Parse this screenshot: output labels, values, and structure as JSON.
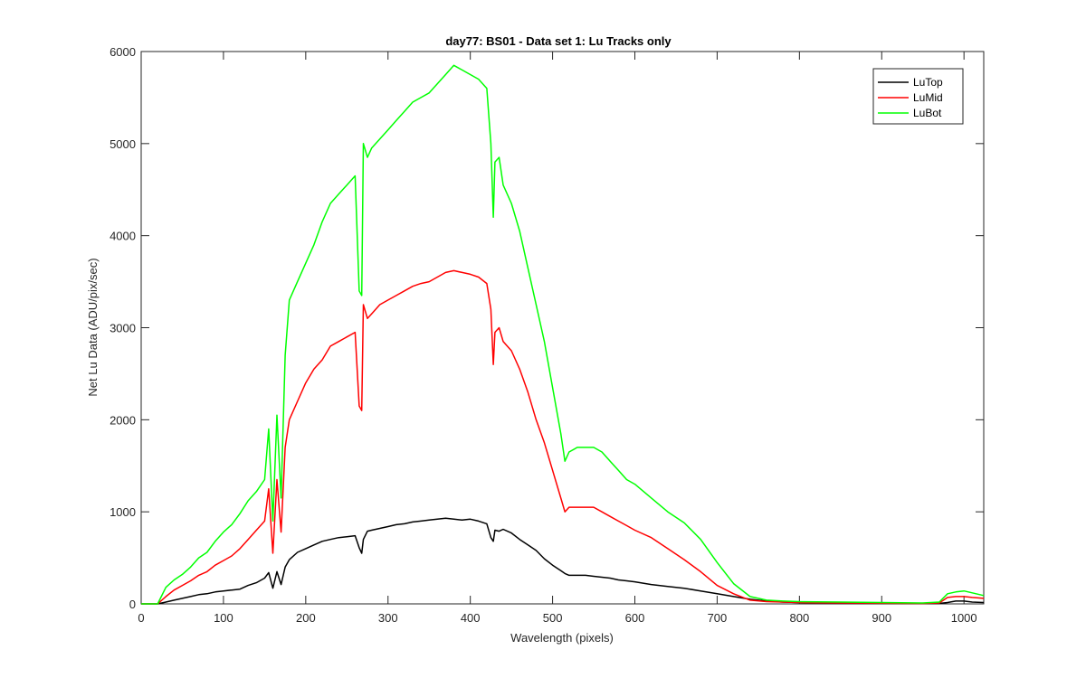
{
  "chart_data": {
    "type": "line",
    "title": "day77: BS01 - Data set 1: Lu Tracks only",
    "xlabel": "Wavelength (pixels)",
    "ylabel": "Net Lu Data (ADU/pix/sec)",
    "xlim": [
      0,
      1024
    ],
    "ylim": [
      0,
      6000
    ],
    "xticks": [
      0,
      100,
      200,
      300,
      400,
      500,
      600,
      700,
      800,
      900,
      1000
    ],
    "yticks": [
      0,
      1000,
      2000,
      3000,
      4000,
      5000,
      6000
    ],
    "grid": false,
    "legend_position": "top-right",
    "x": [
      0,
      20,
      30,
      40,
      50,
      60,
      70,
      80,
      90,
      100,
      110,
      120,
      130,
      140,
      150,
      155,
      160,
      165,
      170,
      175,
      180,
      190,
      200,
      210,
      220,
      230,
      240,
      250,
      260,
      265,
      268,
      270,
      275,
      280,
      290,
      300,
      310,
      320,
      330,
      340,
      350,
      360,
      370,
      380,
      390,
      400,
      410,
      420,
      425,
      428,
      430,
      435,
      440,
      450,
      460,
      470,
      480,
      490,
      500,
      510,
      515,
      520,
      530,
      540,
      550,
      560,
      570,
      580,
      590,
      600,
      620,
      640,
      660,
      680,
      700,
      720,
      740,
      760,
      780,
      800,
      850,
      900,
      950,
      970,
      980,
      990,
      1000,
      1010,
      1024
    ],
    "series": [
      {
        "name": "LuTop",
        "color": "#000000",
        "values": [
          0,
          0,
          20,
          40,
          60,
          80,
          100,
          110,
          130,
          140,
          150,
          160,
          200,
          230,
          280,
          340,
          170,
          350,
          210,
          400,
          480,
          560,
          600,
          640,
          680,
          700,
          720,
          730,
          740,
          610,
          550,
          700,
          790,
          800,
          820,
          840,
          860,
          870,
          890,
          900,
          910,
          920,
          930,
          920,
          910,
          920,
          900,
          870,
          720,
          680,
          800,
          790,
          810,
          770,
          700,
          640,
          580,
          490,
          420,
          360,
          330,
          310,
          310,
          310,
          300,
          290,
          280,
          260,
          250,
          240,
          210,
          190,
          170,
          140,
          110,
          80,
          50,
          30,
          20,
          15,
          10,
          8,
          5,
          5,
          15,
          30,
          30,
          20,
          15
        ]
      },
      {
        "name": "LuMid",
        "color": "#ff0000",
        "values": [
          0,
          0,
          80,
          150,
          200,
          250,
          310,
          350,
          420,
          470,
          520,
          600,
          700,
          800,
          900,
          1250,
          550,
          1350,
          780,
          1700,
          2000,
          2200,
          2400,
          2550,
          2650,
          2800,
          2850,
          2900,
          2950,
          2150,
          2100,
          3250,
          3100,
          3150,
          3250,
          3300,
          3350,
          3400,
          3450,
          3480,
          3500,
          3550,
          3600,
          3620,
          3600,
          3580,
          3550,
          3480,
          3200,
          2600,
          2950,
          3000,
          2850,
          2750,
          2550,
          2300,
          2000,
          1750,
          1450,
          1150,
          1000,
          1050,
          1050,
          1050,
          1050,
          1000,
          950,
          900,
          850,
          800,
          720,
          600,
          480,
          350,
          200,
          110,
          40,
          25,
          20,
          15,
          10,
          8,
          5,
          10,
          70,
          80,
          80,
          70,
          60
        ]
      },
      {
        "name": "LuBot",
        "color": "#00ff00",
        "values": [
          0,
          0,
          180,
          260,
          320,
          400,
          500,
          560,
          680,
          780,
          860,
          980,
          1120,
          1220,
          1350,
          1900,
          900,
          2050,
          1150,
          2700,
          3300,
          3500,
          3700,
          3900,
          4150,
          4350,
          4450,
          4550,
          4650,
          3400,
          3350,
          5000,
          4850,
          4950,
          5050,
          5150,
          5250,
          5350,
          5450,
          5500,
          5550,
          5650,
          5750,
          5850,
          5800,
          5750,
          5700,
          5600,
          5000,
          4200,
          4800,
          4850,
          4550,
          4350,
          4050,
          3650,
          3250,
          2850,
          2350,
          1850,
          1550,
          1650,
          1700,
          1700,
          1700,
          1650,
          1550,
          1450,
          1350,
          1300,
          1150,
          1000,
          880,
          700,
          450,
          220,
          80,
          40,
          30,
          25,
          20,
          15,
          10,
          20,
          110,
          130,
          140,
          120,
          90
        ]
      }
    ]
  }
}
